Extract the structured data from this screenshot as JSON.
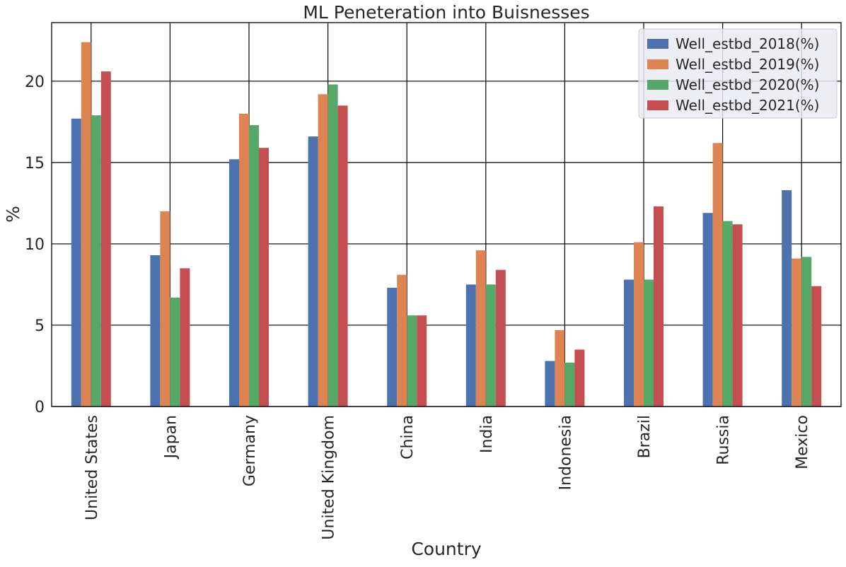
{
  "chart_data": {
    "type": "bar",
    "title": "ML Peneteration into Buisnesses",
    "xlabel": "Country",
    "ylabel": "%",
    "ylim": [
      0,
      23.6
    ],
    "yticks": [
      0,
      5,
      10,
      15,
      20
    ],
    "grid": true,
    "legend_position": "top-right",
    "categories": [
      "United States",
      "Japan",
      "Germany",
      "United Kingdom",
      "China",
      "India",
      "Indonesia",
      "Brazil",
      "Russia",
      "Mexico"
    ],
    "series": [
      {
        "name": "Well_estbd_2018(%)",
        "color": "#4c72b0",
        "values": [
          17.7,
          9.3,
          15.2,
          16.6,
          7.3,
          7.5,
          2.8,
          7.8,
          11.9,
          13.3
        ]
      },
      {
        "name": "Well_estbd_2019(%)",
        "color": "#dd8452",
        "values": [
          22.4,
          12.0,
          18.0,
          19.2,
          8.1,
          9.6,
          4.7,
          10.1,
          16.2,
          9.1
        ]
      },
      {
        "name": "Well_estbd_2020(%)",
        "color": "#55a868",
        "values": [
          17.9,
          6.7,
          17.3,
          19.8,
          5.6,
          7.5,
          2.7,
          7.8,
          11.4,
          9.2
        ]
      },
      {
        "name": "Well_estbd_2021(%)",
        "color": "#c44e52",
        "values": [
          20.6,
          8.5,
          15.9,
          18.5,
          5.6,
          8.4,
          3.5,
          12.3,
          11.2,
          7.4
        ]
      }
    ]
  }
}
